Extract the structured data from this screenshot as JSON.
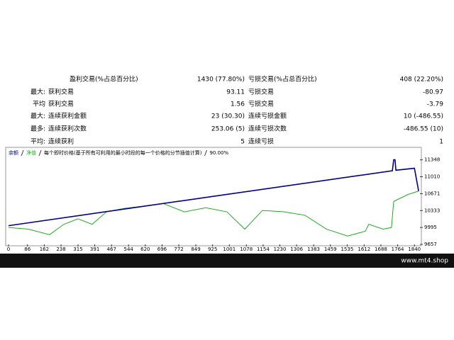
{
  "table": {
    "rows": [
      {
        "label": "盈利交易(%占总百分比)",
        "value": "1430 (77.80%)",
        "label2": "亏损交易(%占总百分比)",
        "value2": "408 (22.20%)"
      },
      {
        "prefix": "最大:",
        "label": "获利交易",
        "value": "93.11",
        "label2": "亏损交易",
        "value2": "-80.97"
      },
      {
        "prefix": "平均",
        "label": "获利交易",
        "value": "1.56",
        "label2": "亏损交易",
        "value2": "-3.79"
      },
      {
        "prefix": "最大:",
        "label": "连续获利金额",
        "value": "23 (30.30)",
        "label2": "连续亏损金额",
        "value2": "10 (-486.55)"
      },
      {
        "prefix": "最多:",
        "label": "连续获利次数",
        "value": "253.06 (5)",
        "label2": "连续亏损次数",
        "value2": "-486.55 (10)"
      },
      {
        "prefix": "平均:",
        "label": "连续获利",
        "value": "5",
        "label2": "连续亏损",
        "value2": "1"
      }
    ]
  },
  "chart_data": {
    "type": "line",
    "subtitle": "每个即时价格(基于所有可利用的最小时段的每一个价格的分节插值计算)",
    "quality": "90.00%",
    "xlim": [
      0,
      1865
    ],
    "ylim": [
      9657,
      11570
    ],
    "xticks": [
      0,
      86,
      162,
      238,
      315,
      391,
      467,
      544,
      620,
      696,
      772,
      849,
      925,
      1001,
      1078,
      1154,
      1230,
      1306,
      1383,
      1459,
      1535,
      1612,
      1688,
      1764,
      1840
    ],
    "yticks": [
      9657,
      9995,
      10333,
      10671,
      11010,
      11348
    ],
    "series": [
      {
        "name": "余额",
        "color": "#00008b",
        "x": [
          0,
          900,
          1740,
          1746,
          1752,
          1756,
          1840,
          1859
        ],
        "values": [
          10031,
          10600,
          11130,
          11350,
          11350,
          11140,
          11180,
          10723
        ]
      },
      {
        "name": "净值",
        "color": "#22aa22",
        "x": [
          0,
          90,
          186,
          251,
          315,
          379,
          444,
          524,
          605,
          701,
          797,
          894,
          990,
          1071,
          1151,
          1248,
          1344,
          1441,
          1537,
          1617,
          1633,
          1698,
          1736,
          1746,
          1810,
          1859
        ],
        "values": [
          9995,
          9962,
          9851,
          10059,
          10169,
          10059,
          10308,
          10377,
          10419,
          10474,
          10308,
          10391,
          10308,
          9962,
          10336,
          10308,
          10239,
          9962,
          9823,
          9920,
          10059,
          9962,
          9995,
          10516,
          10654,
          10723
        ]
      }
    ]
  },
  "footer": {
    "text": "www.mt4.shop"
  }
}
